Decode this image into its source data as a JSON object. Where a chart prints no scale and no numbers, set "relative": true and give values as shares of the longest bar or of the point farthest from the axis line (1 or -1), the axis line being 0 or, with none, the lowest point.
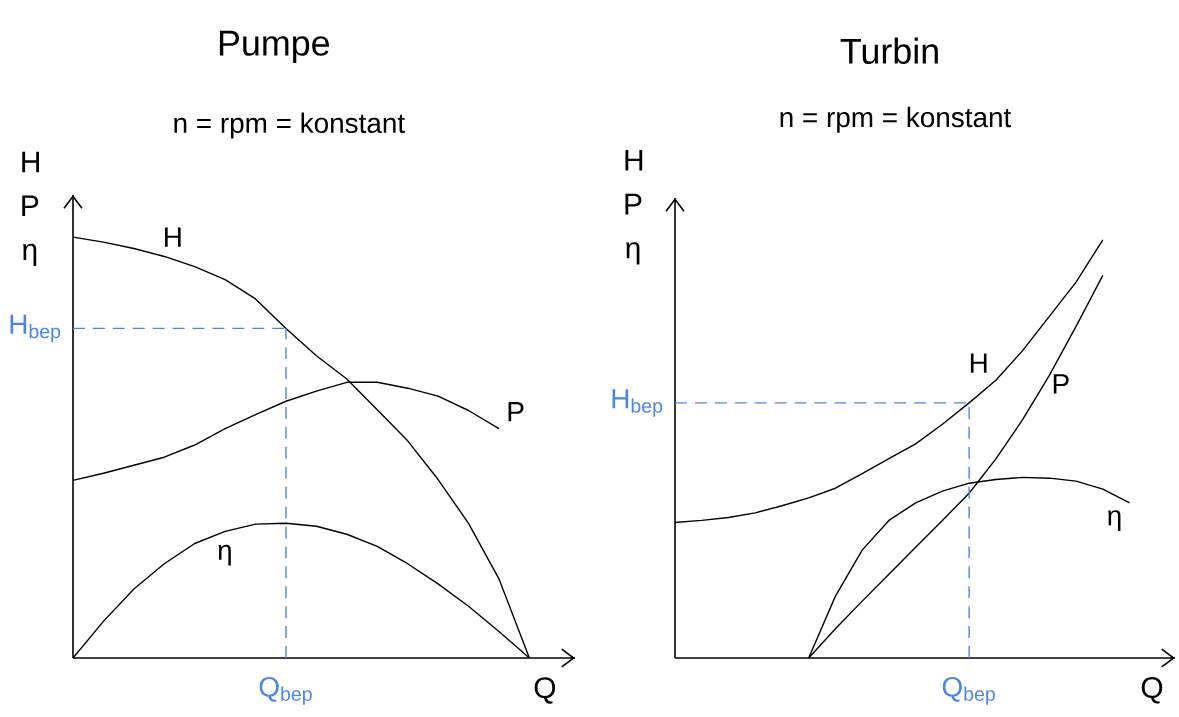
{
  "chart_data": [
    {
      "type": "line",
      "title": "Pumpe",
      "subtitle": "n = rpm = konstant",
      "xlabel": "Q",
      "ylabel": "H P η",
      "relative": true,
      "line_style": "solid",
      "categories": [
        null,
        null,
        null,
        null,
        null,
        null,
        null,
        null,
        null,
        null,
        null,
        null,
        null,
        null,
        null,
        null
      ],
      "series": [
        {
          "name": "H",
          "color": "#000000",
          "values": [
            1.0,
            0.988,
            0.973,
            0.954,
            0.93,
            0.899,
            0.853,
            0.783,
            0.718,
            0.663,
            0.59,
            0.516,
            0.424,
            0.32,
            0.188,
            0
          ]
        },
        {
          "name": "P",
          "color": "#000000",
          "values": [
            0.422,
            0.439,
            0.458,
            0.477,
            0.506,
            0.545,
            0.578,
            0.61,
            0.634,
            0.655,
            0.655,
            0.641,
            0.622,
            0.588,
            0.545,
            null
          ]
        },
        {
          "name": "η",
          "color": "#000000",
          "values": [
            0,
            0.087,
            0.164,
            0.224,
            0.272,
            0.301,
            0.318,
            0.32,
            0.313,
            0.294,
            0.265,
            0.224,
            0.176,
            0.123,
            0.063,
            0
          ]
        }
      ],
      "annotations": [
        "Q$_{bep}$"
      ],
      "ref_lines": [
        {
          "axis": "y",
          "value": 0.783,
          "label": "H$_{bep}$",
          "color": "#4a86e8",
          "line_style": "dashed"
        }
      ]
    },
    {
      "type": "line",
      "title": "Turbin",
      "subtitle": "n = rpm = konstant",
      "xlabel": "Q",
      "ylabel": "H P η",
      "relative": true,
      "line_style": "solid",
      "categories": [
        null,
        null,
        null,
        null,
        null,
        null,
        null,
        null,
        null,
        null,
        null,
        null,
        null,
        null,
        null,
        null,
        null,
        null
      ],
      "series": [
        {
          "name": "H",
          "color": "#000000",
          "values": [
            0.324,
            0.329,
            0.336,
            0.347,
            0.364,
            0.383,
            0.406,
            0.441,
            0.477,
            0.512,
            0.559,
            0.61,
            0.664,
            0.735,
            0.817,
            0.899,
            1.0,
            null
          ]
        },
        {
          "name": "P",
          "color": "#000000",
          "values": [
            null,
            null,
            null,
            null,
            null,
            0,
            0.07,
            0.136,
            0.2,
            0.265,
            0.329,
            0.394,
            0.476,
            0.57,
            0.676,
            0.793,
            0.915,
            null
          ]
        },
        {
          "name": "η",
          "color": "#000000",
          "values": [
            null,
            null,
            null,
            null,
            null,
            0,
            0.148,
            0.258,
            0.329,
            0.371,
            0.399,
            0.418,
            0.427,
            0.432,
            0.43,
            0.423,
            0.404,
            0.371
          ]
        }
      ],
      "annotations": [
        "Q$_{bep}$"
      ],
      "ref_lines": [
        {
          "axis": "y",
          "value": 0.61,
          "label": "H$_{bep}$",
          "color": "#4a86e8",
          "line_style": "dashed"
        }
      ]
    }
  ]
}
